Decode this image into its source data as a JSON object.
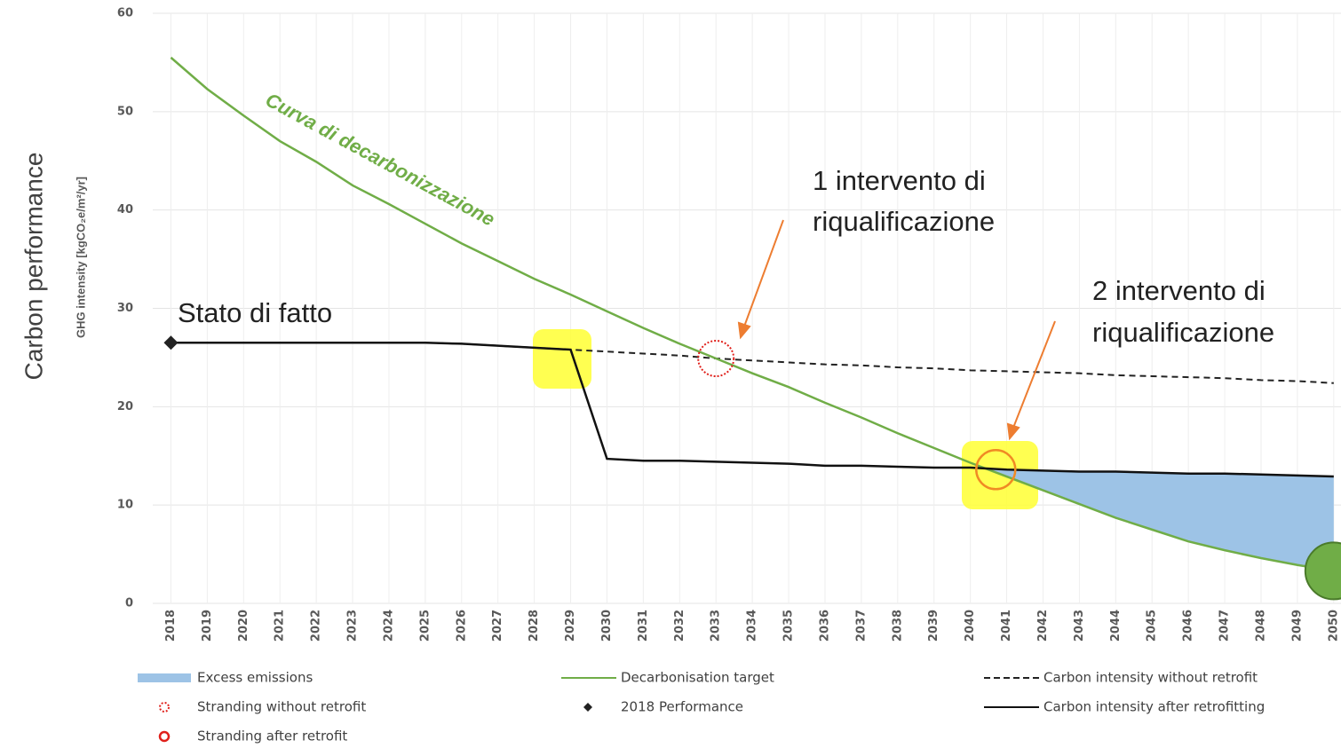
{
  "chart_data": {
    "type": "line",
    "y_label": "Carbon performance",
    "axis_label": "GHG intensity [kgCO₂e/m²/yr]",
    "x": [
      2018,
      2019,
      2020,
      2021,
      2022,
      2023,
      2024,
      2025,
      2026,
      2027,
      2028,
      2029,
      2030,
      2031,
      2032,
      2033,
      2034,
      2035,
      2036,
      2037,
      2038,
      2039,
      2040,
      2041,
      2042,
      2043,
      2044,
      2045,
      2046,
      2047,
      2048,
      2049,
      2050
    ],
    "xlim": [
      2017.5,
      2050.2
    ],
    "xticks": [
      2018,
      2019,
      2020,
      2021,
      2022,
      2023,
      2024,
      2025,
      2026,
      2027,
      2028,
      2029,
      2030,
      2031,
      2032,
      2033,
      2034,
      2035,
      2036,
      2037,
      2038,
      2039,
      2040,
      2041,
      2042,
      2043,
      2044,
      2045,
      2046,
      2047,
      2048,
      2049,
      2050
    ],
    "ylim": [
      0,
      60
    ],
    "yticks": [
      0,
      10,
      20,
      30,
      40,
      50,
      60
    ],
    "grid": true,
    "series": [
      {
        "name": "Decarbonisation target",
        "color": "#70ad47",
        "dash": false,
        "values": [
          55.5,
          52.3,
          49.6,
          47.0,
          44.9,
          42.5,
          40.6,
          38.6,
          36.6,
          34.8,
          33.0,
          31.4,
          29.7,
          28.0,
          26.4,
          24.9,
          23.4,
          22.0,
          20.4,
          18.9,
          17.3,
          15.8,
          14.3,
          12.9,
          11.5,
          10.1,
          8.7,
          7.5,
          6.3,
          5.4,
          4.6,
          3.9,
          3.3
        ]
      },
      {
        "name": "Carbon intensity without retrofit",
        "color": "#222222",
        "dash": true,
        "values": [
          26.5,
          26.5,
          26.5,
          26.5,
          26.5,
          26.5,
          26.5,
          26.5,
          26.4,
          26.2,
          26.0,
          25.8,
          25.6,
          25.4,
          25.2,
          24.9,
          24.7,
          24.5,
          24.3,
          24.2,
          24.0,
          23.9,
          23.7,
          23.6,
          23.5,
          23.4,
          23.2,
          23.1,
          23.0,
          22.9,
          22.7,
          22.6,
          22.4
        ]
      },
      {
        "name": "Carbon intensity after retrofitting",
        "color": "#111111",
        "dash": false,
        "values": [
          26.5,
          26.5,
          26.5,
          26.5,
          26.5,
          26.5,
          26.5,
          26.5,
          26.4,
          26.2,
          26.0,
          25.8,
          14.7,
          14.5,
          14.5,
          14.4,
          14.3,
          14.2,
          14.0,
          14.0,
          13.9,
          13.8,
          13.8,
          13.6,
          13.5,
          13.4,
          13.4,
          13.3,
          13.2,
          13.2,
          13.1,
          13.0,
          12.9
        ]
      }
    ],
    "area": {
      "name": "Excess emissions",
      "color": "#9dc3e6"
    },
    "points": [
      {
        "name": "2018 Performance",
        "x": 2018,
        "y": 26.5,
        "color": "#222222",
        "shape": "diamond"
      },
      {
        "name": "Stranding without retrofit",
        "x": 2033,
        "y": 24.9,
        "color": "#e0201b",
        "shape": "dotted-circle"
      },
      {
        "name": "Stranding after retrofit",
        "x": 2040.7,
        "y": 13.6,
        "color": "#f08a24",
        "shape": "circle"
      },
      {
        "x": 2050,
        "y": 3.3,
        "color": "#70ad47",
        "shape": "disc"
      }
    ],
    "annotations": [
      {
        "text": "Curva di decarbonizzazione"
      },
      {
        "text": "Stato di fatto"
      },
      {
        "text": "1 intervento di"
      },
      {
        "text": "riqualificazione"
      },
      {
        "text": "2 intervento di"
      },
      {
        "text": "riqualificazione"
      }
    ]
  }
}
